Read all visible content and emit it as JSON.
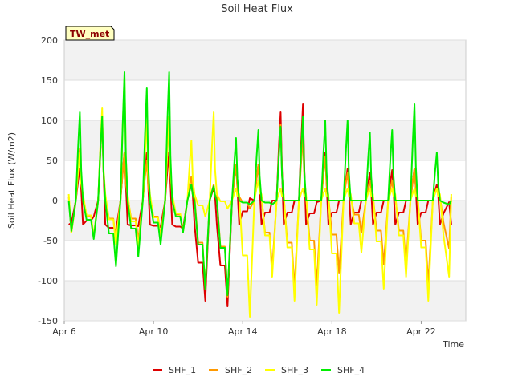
{
  "chart_data": {
    "type": "line",
    "title": "Soil Heat Flux",
    "xlabel": "Time",
    "ylabel": "Soil Heat Flux (W/m2)",
    "site_label": "TW_met",
    "ylim": [
      -150,
      200
    ],
    "yticks": [
      -150,
      -100,
      -50,
      0,
      50,
      100,
      150,
      200
    ],
    "xlim": [
      6,
      24
    ],
    "xticks": [
      {
        "value": 6,
        "label": "Apr 6"
      },
      {
        "value": 10,
        "label": "Apr 10"
      },
      {
        "value": 14,
        "label": "Apr 14"
      },
      {
        "value": 18,
        "label": "Apr 18"
      },
      {
        "value": 22,
        "label": "Apr 22"
      }
    ],
    "day_start": 6.2,
    "day_count": 17,
    "series": [
      {
        "name": "SHF_1",
        "color": "#dd0000",
        "night_value": -30,
        "midday_value": 0,
        "base": [
          -28,
          -20,
          -38,
          -32,
          -33,
          -35,
          -125,
          -132,
          3,
          0,
          0,
          -2,
          0,
          0,
          0,
          0,
          0,
          -2
        ],
        "peak": [
          40,
          105,
          60,
          60,
          60,
          20,
          15,
          45,
          45,
          110,
          120,
          60,
          40,
          35,
          38,
          40,
          20
        ]
      },
      {
        "name": "SHF_2",
        "color": "#ff9900",
        "night_value": 5,
        "midday_value": 0,
        "base": [
          -40,
          -45,
          -50,
          -50,
          -45,
          -40,
          -110,
          -120,
          -10,
          -85,
          -110,
          -105,
          -90,
          -40,
          -80,
          -80,
          -105,
          -60
        ],
        "peak": [
          65,
          100,
          60,
          50,
          100,
          30,
          20,
          45,
          45,
          95,
          80,
          55,
          35,
          25,
          25,
          40,
          15
        ]
      },
      {
        "name": "SHF_3",
        "color": "#ffff00",
        "night_value": 8,
        "midday_value": 0,
        "base": [
          -40,
          -45,
          -55,
          -60,
          -50,
          -40,
          -20,
          -10,
          -145,
          -95,
          -125,
          -130,
          -140,
          -65,
          -110,
          -95,
          -125,
          -95
        ],
        "peak": [
          60,
          115,
          155,
          100,
          105,
          75,
          110,
          15,
          25,
          15,
          15,
          15,
          15,
          15,
          15,
          15,
          15
        ]
      },
      {
        "name": "SHF_4",
        "color": "#00ee00",
        "night_value": 0,
        "midday_value": 0,
        "base": [
          -38,
          -48,
          -82,
          -70,
          -55,
          -40,
          -110,
          -118,
          -5,
          -5,
          0,
          0,
          0,
          0,
          0,
          0,
          0,
          -5
        ],
        "peak": [
          110,
          105,
          160,
          140,
          160,
          20,
          18,
          78,
          88,
          92,
          105,
          100,
          100,
          85,
          88,
          120,
          60
        ]
      }
    ]
  }
}
